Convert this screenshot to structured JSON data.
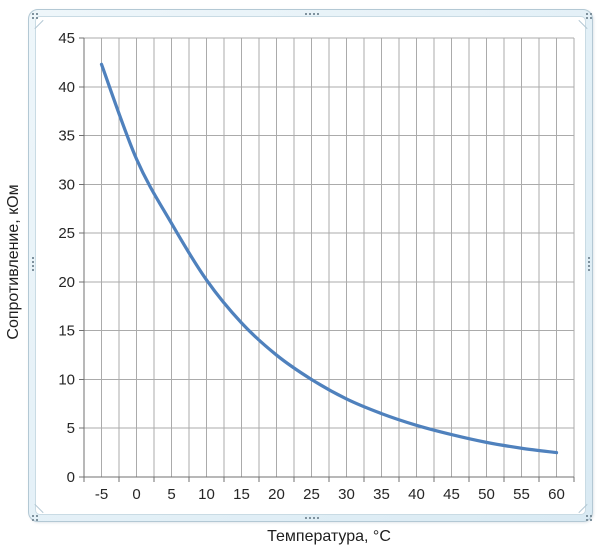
{
  "chart": {
    "x_title": "Температура,  °C",
    "y_title": "Сопротивление, кОм"
  },
  "chart_data": {
    "type": "line",
    "title": "",
    "xlabel": "Температура,  °C",
    "ylabel": "Сопротивление, кОм",
    "x": [
      -5,
      0,
      5,
      10,
      15,
      20,
      25,
      30,
      35,
      40,
      45,
      50,
      55,
      60
    ],
    "values": [
      42.3,
      32.6,
      26.0,
      20.2,
      15.8,
      12.5,
      10.0,
      8.0,
      6.5,
      5.3,
      4.35,
      3.55,
      2.95,
      2.5
    ],
    "x_tick_labels": [
      "-5",
      "0",
      "5",
      "10",
      "15",
      "20",
      "25",
      "30",
      "35",
      "40",
      "45",
      "50",
      "55",
      "60"
    ],
    "y_tick_labels": [
      "0",
      "5",
      "10",
      "15",
      "20",
      "25",
      "30",
      "35",
      "40",
      "45"
    ],
    "y_ticks": [
      0,
      5,
      10,
      15,
      20,
      25,
      30,
      35,
      40,
      45
    ],
    "xlim": [
      -7.5,
      62.5
    ],
    "ylim": [
      0,
      45
    ],
    "x_minor_grid_step": 2.5,
    "x_major_tick_step": 5,
    "y_grid_step": 5,
    "grid": true,
    "legend": "none",
    "smooth_line": true
  },
  "colors": {
    "line": "#4F81BD",
    "gridline": "#ababab",
    "axis": "#707070",
    "text": "#262626",
    "frame_fill": "#e3f0f7",
    "frame_border": "#b3c8d4",
    "grip_dot": "#7f929e",
    "background": "#ffffff"
  },
  "ui": {
    "selection_frame": true,
    "handles": [
      "top",
      "bottom",
      "left",
      "right",
      "top-left",
      "top-right",
      "bottom-left",
      "bottom-right"
    ]
  }
}
